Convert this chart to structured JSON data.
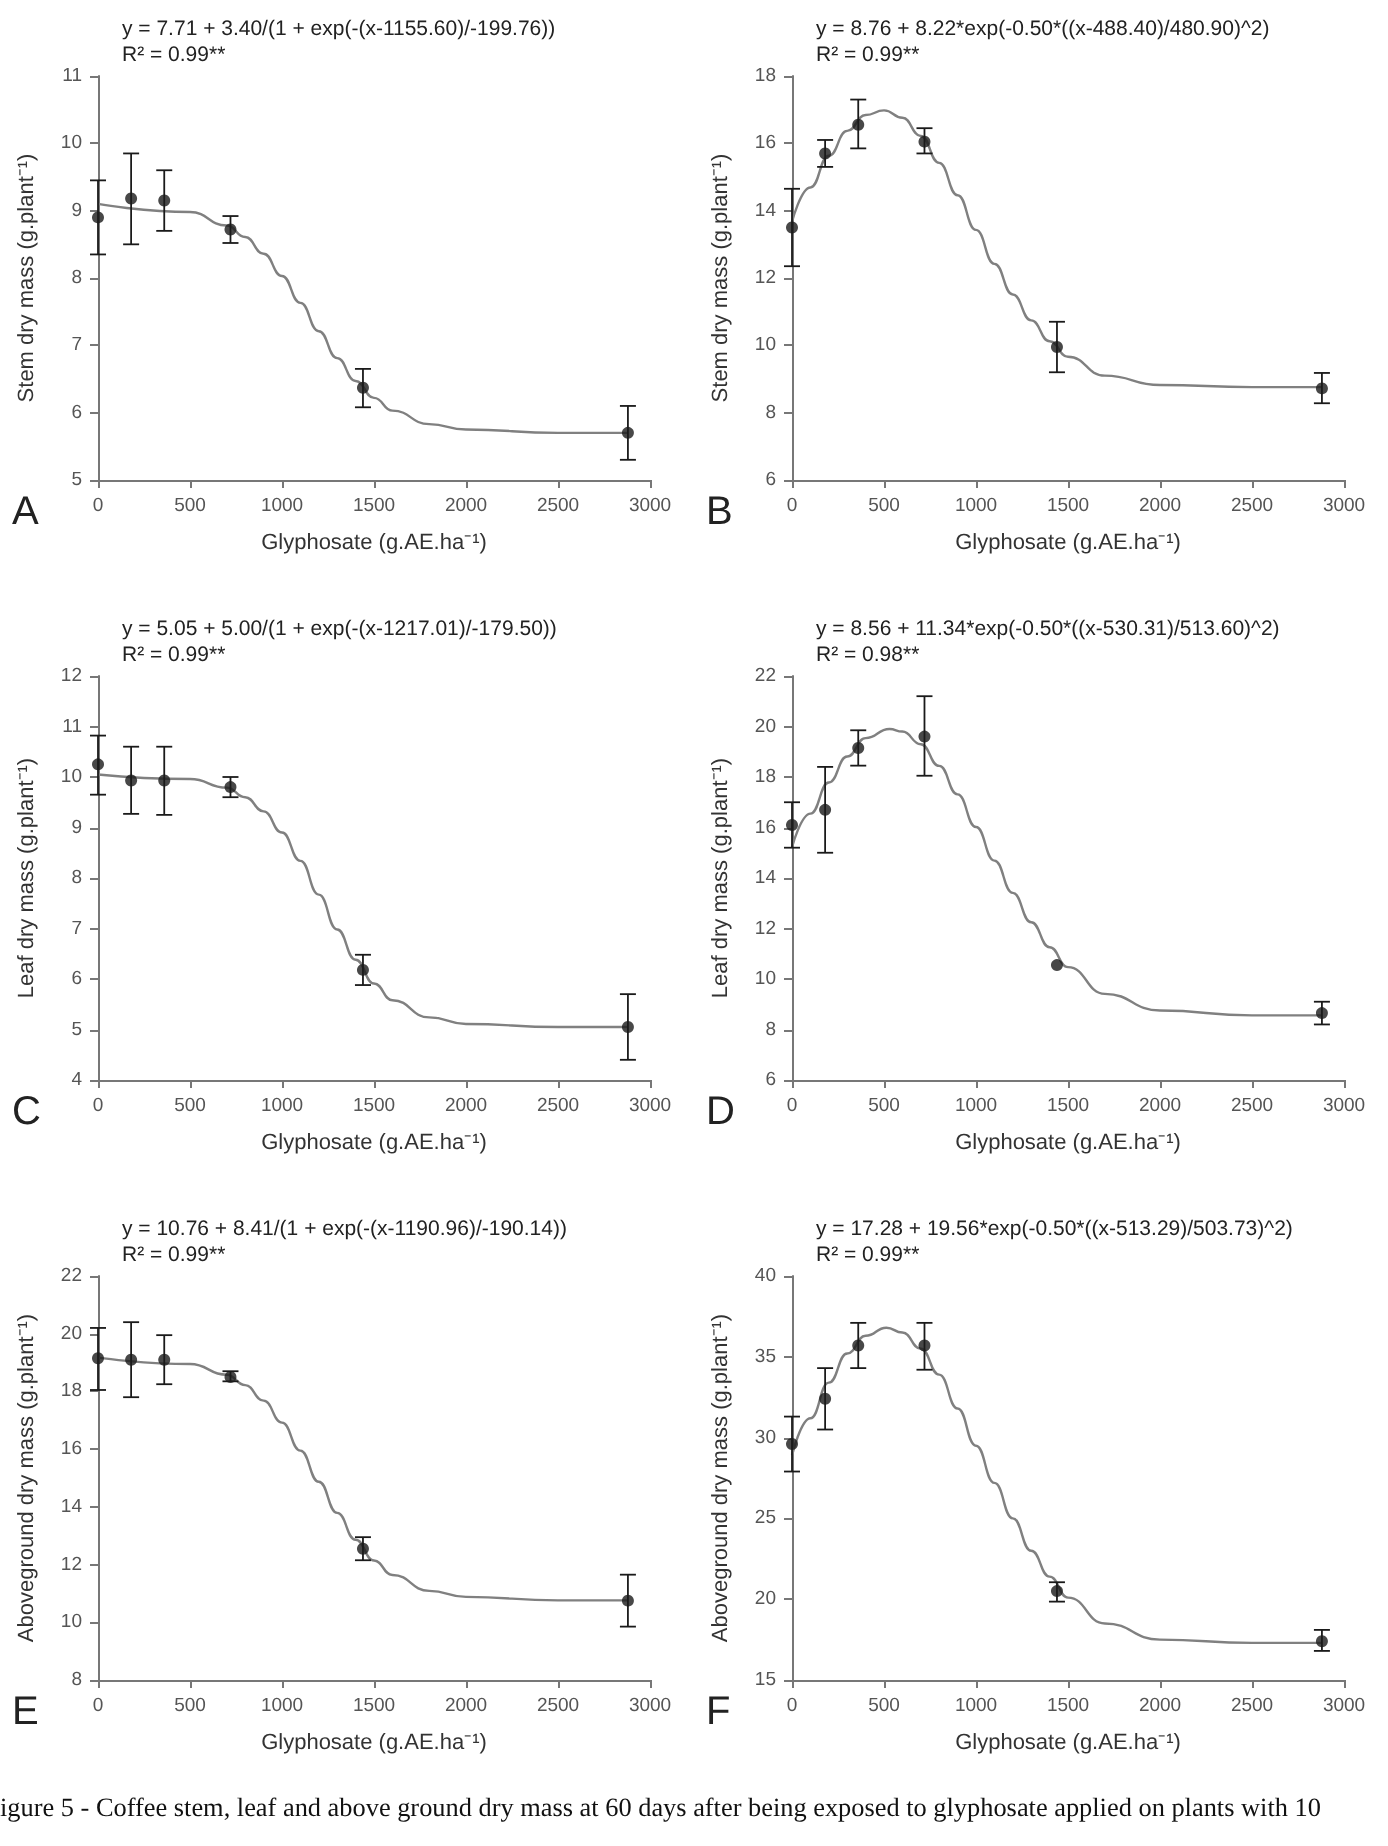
{
  "chart_data": [
    {
      "type": "scatter",
      "title": "y = 7.71 + 3.40/(1 + exp(-(x-1155.60)/-199.76))",
      "subtitle": "R² = 0.99**",
      "xlabel": "Glyphosate (g.AE.ha⁻¹)",
      "ylabel": "Stem dry mass (g.plant⁻¹)",
      "annotations": [
        "A"
      ],
      "x": [
        0,
        180,
        360,
        720,
        1440,
        2880
      ],
      "xlim": [
        0,
        3000
      ],
      "xticks": [
        0,
        500,
        1000,
        1500,
        2000,
        2500,
        3000
      ],
      "ylim": [
        5,
        11
      ],
      "yticks": [
        5,
        6,
        7,
        8,
        9,
        10,
        11
      ],
      "grid": false,
      "series": [
        {
          "color": "#1a1a1a",
          "marker": "circle",
          "values": [
            8.9,
            9.18,
            9.15,
            8.72,
            6.37,
            5.7
          ],
          "errors": [
            [
              8.35,
              9.45
            ],
            [
              8.5,
              9.85
            ],
            [
              8.7,
              9.6
            ],
            [
              8.52,
              8.92
            ],
            [
              6.08,
              6.65
            ],
            [
              5.3,
              6.1
            ]
          ]
        },
        {
          "type": "line",
          "color": "#808080",
          "marker": "none",
          "line_style": "solid",
          "x": [
            0,
            500,
            700,
            800,
            900,
            1000,
            1100,
            1200,
            1300,
            1400,
            1500,
            1600,
            1800,
            2000,
            2500,
            2880
          ],
          "values": [
            9.1,
            8.98,
            8.78,
            8.61,
            8.36,
            8.03,
            7.63,
            7.21,
            6.81,
            6.47,
            6.22,
            6.03,
            5.83,
            5.75,
            5.7,
            5.7
          ]
        }
      ]
    },
    {
      "type": "scatter",
      "title": "y = 8.76 + 8.22*exp(-0.50*((x-488.40)/480.90)^2)",
      "subtitle": "R² = 0.99**",
      "xlabel": "Glyphosate (g.AE.ha⁻¹)",
      "ylabel": "Stem dry mass (g.plant⁻¹)",
      "annotations": [
        "B"
      ],
      "x": [
        0,
        180,
        360,
        720,
        1440,
        2880
      ],
      "xlim": [
        0,
        3000
      ],
      "xticks": [
        0,
        500,
        1000,
        1500,
        2000,
        2500,
        3000
      ],
      "ylim": [
        6,
        18
      ],
      "yticks": [
        6,
        8,
        10,
        12,
        14,
        16,
        18
      ],
      "grid": false,
      "series": [
        {
          "color": "#1a1a1a",
          "marker": "circle",
          "values": [
            13.5,
            15.7,
            16.55,
            16.05,
            9.95,
            8.72
          ],
          "errors": [
            [
              12.35,
              14.65
            ],
            [
              15.3,
              16.1
            ],
            [
              15.85,
              17.3
            ],
            [
              15.7,
              16.45
            ],
            [
              9.2,
              10.7
            ],
            [
              8.28,
              9.18
            ]
          ]
        },
        {
          "type": "line",
          "color": "#808080",
          "marker": "none",
          "line_style": "solid",
          "x": [
            0,
            100,
            200,
            300,
            400,
            500,
            600,
            700,
            800,
            900,
            1000,
            1100,
            1200,
            1300,
            1400,
            1500,
            1700,
            2000,
            2500,
            2880
          ],
          "values": [
            13.67,
            14.69,
            15.63,
            16.37,
            16.84,
            16.98,
            16.76,
            16.22,
            15.42,
            14.46,
            13.43,
            12.42,
            11.51,
            10.74,
            10.12,
            9.66,
            9.1,
            8.82,
            8.76,
            8.76
          ]
        }
      ]
    },
    {
      "type": "scatter",
      "title": "y = 5.05 + 5.00/(1 + exp(-(x-1217.01)/-179.50))",
      "subtitle": "R² = 0.99**",
      "xlabel": "Glyphosate (g.AE.ha⁻¹)",
      "ylabel": "Leaf dry mass (g.plant⁻¹)",
      "annotations": [
        "C"
      ],
      "x": [
        0,
        180,
        360,
        720,
        1440,
        2880
      ],
      "xlim": [
        0,
        3000
      ],
      "xticks": [
        0,
        500,
        1000,
        1500,
        2000,
        2500,
        3000
      ],
      "ylim": [
        4,
        12
      ],
      "yticks": [
        4,
        5,
        6,
        7,
        8,
        9,
        10,
        11,
        12
      ],
      "grid": false,
      "series": [
        {
          "color": "#1a1a1a",
          "marker": "circle",
          "values": [
            10.25,
            9.93,
            9.93,
            9.8,
            6.18,
            5.05
          ],
          "errors": [
            [
              9.65,
              10.82
            ],
            [
              9.27,
              10.6
            ],
            [
              9.25,
              10.6
            ],
            [
              9.6,
              10.0
            ],
            [
              5.88,
              6.48
            ],
            [
              4.4,
              5.7
            ]
          ]
        },
        {
          "type": "line",
          "color": "#808080",
          "marker": "none",
          "line_style": "solid",
          "x": [
            0,
            500,
            700,
            800,
            900,
            1000,
            1100,
            1200,
            1300,
            1400,
            1500,
            1600,
            1800,
            2000,
            2500,
            2880
          ],
          "values": [
            10.05,
            9.96,
            9.79,
            9.6,
            9.32,
            8.9,
            8.34,
            7.67,
            6.98,
            6.38,
            5.91,
            5.58,
            5.24,
            5.11,
            5.05,
            5.05
          ]
        }
      ]
    },
    {
      "type": "scatter",
      "title": "y = 8.56 + 11.34*exp(-0.50*((x-530.31)/513.60)^2)",
      "subtitle": "R² = 0.98**",
      "xlabel": "Glyphosate (g.AE.ha⁻¹)",
      "ylabel": "Leaf dry mass (g.plant⁻¹)",
      "annotations": [
        "D"
      ],
      "x": [
        0,
        180,
        360,
        720,
        1440,
        2880
      ],
      "xlim": [
        0,
        3000
      ],
      "xticks": [
        0,
        500,
        1000,
        1500,
        2000,
        2500,
        3000
      ],
      "ylim": [
        6,
        22
      ],
      "yticks": [
        6,
        8,
        10,
        12,
        14,
        16,
        18,
        20,
        22
      ],
      "grid": false,
      "series": [
        {
          "color": "#1a1a1a",
          "marker": "circle",
          "values": [
            16.1,
            16.7,
            19.15,
            19.6,
            10.55,
            8.65
          ],
          "errors": [
            [
              15.2,
              17.0
            ],
            [
              15.0,
              18.4
            ],
            [
              18.45,
              19.85
            ],
            [
              18.05,
              21.2
            ],
            null,
            [
              8.2,
              9.1
            ]
          ]
        },
        {
          "type": "line",
          "color": "#808080",
          "marker": "none",
          "line_style": "solid",
          "x": [
            0,
            100,
            200,
            300,
            400,
            530,
            600,
            700,
            800,
            900,
            1000,
            1100,
            1200,
            1300,
            1400,
            1500,
            1700,
            2000,
            2500,
            2880
          ],
          "values": [
            15.22,
            16.55,
            17.78,
            18.81,
            19.54,
            19.9,
            19.8,
            19.3,
            18.44,
            17.31,
            16.02,
            14.69,
            13.41,
            12.25,
            11.26,
            10.47,
            9.41,
            8.75,
            8.56,
            8.56
          ]
        }
      ]
    },
    {
      "type": "scatter",
      "title": "y = 10.76 + 8.41/(1 + exp(-(x-1190.96)/-190.14))",
      "subtitle": "R² = 0.99**",
      "xlabel": "Glyphosate (g.AE.ha⁻¹)",
      "ylabel": "Aboveground dry mass (g.plant⁻¹)",
      "annotations": [
        "E"
      ],
      "x": [
        0,
        180,
        360,
        720,
        1440,
        2880
      ],
      "xlim": [
        0,
        3000
      ],
      "xticks": [
        0,
        500,
        1000,
        1500,
        2000,
        2500,
        3000
      ],
      "ylim": [
        8,
        22
      ],
      "yticks": [
        8,
        10,
        12,
        14,
        16,
        18,
        20,
        22
      ],
      "grid": false,
      "series": [
        {
          "color": "#1a1a1a",
          "marker": "circle",
          "values": [
            19.15,
            19.1,
            19.1,
            18.5,
            12.55,
            10.75
          ],
          "errors": [
            [
              18.05,
              20.2
            ],
            [
              17.8,
              20.4
            ],
            [
              18.25,
              19.95
            ],
            [
              18.35,
              18.7
            ],
            [
              12.15,
              12.95
            ],
            [
              9.85,
              11.65
            ]
          ]
        },
        {
          "type": "line",
          "color": "#808080",
          "marker": "none",
          "line_style": "solid",
          "x": [
            0,
            500,
            700,
            800,
            900,
            1000,
            1100,
            1200,
            1300,
            1400,
            1500,
            1600,
            1800,
            2000,
            2500,
            2880
          ],
          "values": [
            19.17,
            18.95,
            18.58,
            18.22,
            17.68,
            16.92,
            15.95,
            14.87,
            13.79,
            12.86,
            12.14,
            11.64,
            11.09,
            10.88,
            10.76,
            10.76
          ]
        }
      ]
    },
    {
      "type": "scatter",
      "title": "y = 17.28 + 19.56*exp(-0.50*((x-513.29)/503.73)^2)",
      "subtitle": "R² = 0.99**",
      "xlabel": "Glyphosate (g.AE.ha⁻¹)",
      "ylabel": "Aboveground dry mass (g.plant⁻¹)",
      "annotations": [
        "F",
        "igure 5 - Coffee stem, leaf and above ground dry mass at 60 days after being exposed to glyphosate applied on plants with 10"
      ],
      "x": [
        0,
        180,
        360,
        720,
        1440,
        2880
      ],
      "xlim": [
        0,
        3000
      ],
      "xticks": [
        0,
        500,
        1000,
        1500,
        2000,
        2500,
        3000
      ],
      "ylim": [
        15,
        40
      ],
      "yticks": [
        15,
        20,
        25,
        30,
        35,
        40
      ],
      "grid": false,
      "series": [
        {
          "color": "#1a1a1a",
          "marker": "circle",
          "values": [
            29.6,
            32.4,
            35.7,
            35.7,
            20.5,
            17.4
          ],
          "errors": [
            [
              27.9,
              31.3
            ],
            [
              30.5,
              34.3
            ],
            [
              34.3,
              37.1
            ],
            [
              34.2,
              37.1
            ],
            [
              19.85,
              21.05
            ],
            [
              16.8,
              18.1
            ]
          ]
        },
        {
          "type": "line",
          "color": "#808080",
          "marker": "none",
          "line_style": "solid",
          "x": [
            0,
            100,
            200,
            300,
            400,
            513,
            600,
            700,
            800,
            900,
            1000,
            1100,
            1200,
            1300,
            1400,
            1500,
            1700,
            2000,
            2500,
            2880
          ],
          "values": [
            28.9,
            31.2,
            33.4,
            35.2,
            36.3,
            36.8,
            36.5,
            35.5,
            33.9,
            31.8,
            29.5,
            27.2,
            25.0,
            23.0,
            21.4,
            20.1,
            18.5,
            17.5,
            17.3,
            17.3
          ]
        }
      ]
    }
  ]
}
